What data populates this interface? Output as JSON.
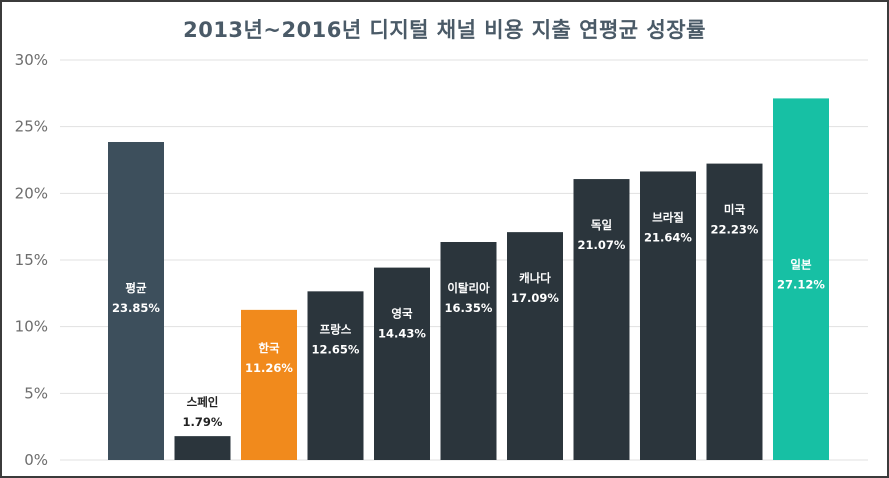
{
  "chart_data": {
    "type": "bar",
    "title": "2013년~2016년 디지털 채널 비용 지출 연평균 성장률",
    "categories": [
      "평균",
      "스페인",
      "한국",
      "프랑스",
      "영국",
      "이탈리아",
      "캐나다",
      "독일",
      "브라질",
      "미국",
      "일본"
    ],
    "values": [
      23.85,
      1.79,
      11.26,
      12.65,
      14.43,
      16.35,
      17.09,
      21.07,
      21.64,
      22.23,
      27.12
    ],
    "value_labels": [
      "23.85%",
      "1.79%",
      "11.26%",
      "12.65%",
      "14.43%",
      "16.35%",
      "17.09%",
      "21.07%",
      "21.64%",
      "22.23%",
      "27.12%"
    ],
    "colors": [
      "#3d4f5c",
      "#2b353c",
      "#f18a1c",
      "#2b353c",
      "#2b353c",
      "#2b353c",
      "#2b353c",
      "#2b353c",
      "#2b353c",
      "#2b353c",
      "#17c0a4"
    ],
    "ylim": [
      0,
      30
    ],
    "yticks": [
      0,
      5,
      10,
      15,
      20,
      25,
      30
    ],
    "ytick_labels": [
      "0%",
      "5%",
      "10%",
      "15%",
      "20%",
      "25%",
      "30%"
    ],
    "grid": true,
    "legend": "none"
  }
}
